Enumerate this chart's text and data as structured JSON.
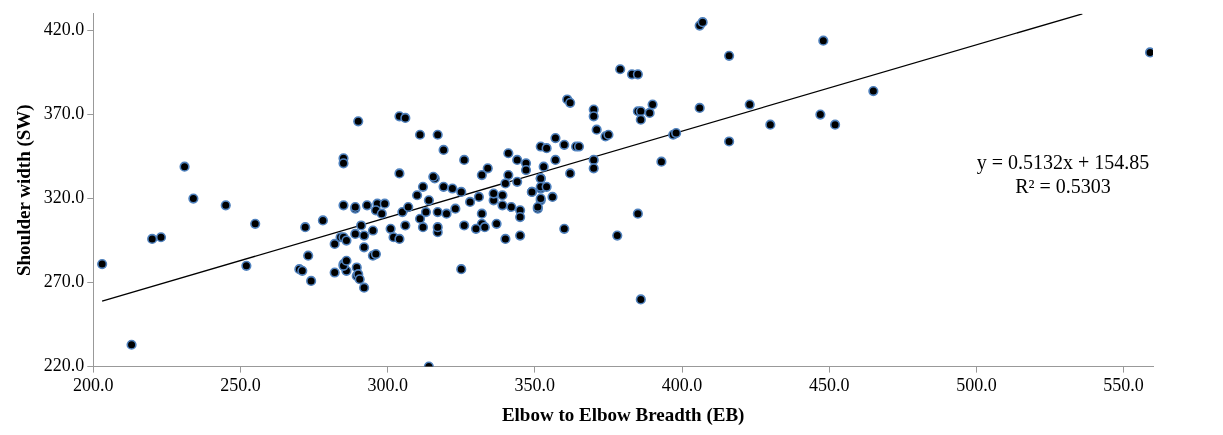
{
  "chart_data": {
    "type": "scatter",
    "xlabel": "Elbow to Elbow Breadth (EB)",
    "ylabel": "Shoulder width (SW)",
    "xlim": [
      200,
      560
    ],
    "xticks": [
      {
        "value": 200,
        "label": "200.0"
      },
      {
        "value": 250,
        "label": "250.0"
      },
      {
        "value": 300,
        "label": "300.0"
      },
      {
        "value": 350,
        "label": "350.0"
      },
      {
        "value": 400,
        "label": "400.0"
      },
      {
        "value": 450,
        "label": "450.0"
      },
      {
        "value": 500,
        "label": "500.0"
      },
      {
        "value": 550,
        "label": "550.0"
      }
    ],
    "ylim": [
      220,
      430
    ],
    "yticks": [
      {
        "value": 220,
        "label": "220.0"
      },
      {
        "value": 270,
        "label": "270.0"
      },
      {
        "value": 320,
        "label": "320.0"
      },
      {
        "value": 370,
        "label": "370.0"
      },
      {
        "value": 420,
        "label": "420.0"
      }
    ],
    "grid": false,
    "legend": false,
    "marker": "circle",
    "annotations": [
      "y = 0.5132x + 154.85",
      "R² = 0.5303"
    ],
    "series": [
      {
        "color": "#000000",
        "x": [
          203,
          213,
          220,
          223,
          231,
          234,
          245,
          255,
          252,
          272,
          278,
          273,
          270,
          271,
          274,
          282,
          282,
          285,
          285,
          285,
          284,
          285,
          286,
          290,
          289,
          285,
          286,
          285,
          286,
          289.5,
          289.5,
          289,
          304,
          306,
          311,
          317,
          319,
          304,
          326,
          341,
          344,
          347,
          334,
          332,
          352,
          354,
          353,
          347,
          341,
          312,
          316,
          315.5,
          319,
          322,
          325,
          310,
          314,
          289,
          293,
          296.5,
          299,
          296,
          298,
          305,
          307,
          311,
          313,
          317,
          320,
          323,
          328,
          331,
          336,
          339,
          342,
          339,
          345,
          345,
          349,
          351,
          352,
          352,
          352,
          332,
          332,
          337,
          326,
          330,
          333,
          340,
          345,
          325,
          317,
          317,
          312,
          306,
          301,
          302,
          304,
          295,
          291,
          292,
          292,
          295,
          296,
          290,
          290.5,
          292,
          340,
          336,
          344,
          406,
          407,
          448,
          416,
          379,
          383,
          385,
          361,
          362,
          370,
          370,
          385,
          386,
          386,
          390,
          389,
          406,
          423,
          447,
          452,
          430,
          397,
          398,
          371,
          374,
          375,
          416,
          357,
          360,
          364,
          365,
          370,
          370,
          357,
          393,
          362,
          352,
          352,
          354,
          349,
          352,
          356,
          351,
          360,
          385,
          378,
          386,
          465,
          559,
          314
        ],
        "values": [
          281,
          233,
          296,
          297,
          339,
          320,
          316,
          305,
          280,
          303,
          307,
          286,
          278,
          277,
          271,
          293,
          276,
          344,
          341,
          316,
          297,
          281,
          277,
          366,
          314,
          297,
          295,
          280,
          283,
          274,
          279,
          299,
          369,
          368,
          358,
          358,
          349,
          335,
          343,
          347,
          343,
          341,
          338,
          334,
          351,
          350,
          339,
          337,
          334,
          327,
          332,
          333,
          327,
          326,
          324,
          322,
          319,
          315,
          316,
          317,
          317,
          313,
          311,
          312,
          315,
          308,
          312,
          312,
          311,
          314,
          318,
          321,
          319,
          322,
          315,
          316,
          313,
          309,
          324,
          314,
          332,
          326,
          319,
          311,
          305,
          305,
          304,
          302,
          303,
          296,
          298,
          278,
          300,
          303,
          303,
          304,
          302,
          297,
          296,
          301,
          304,
          298,
          291,
          286,
          287,
          275,
          272,
          267,
          329,
          323,
          330,
          423,
          425,
          414,
          405,
          397,
          394,
          394,
          379,
          377,
          373,
          369,
          372,
          372,
          367,
          376,
          371,
          374,
          376,
          370,
          364,
          364,
          358,
          359,
          361,
          357,
          358,
          354,
          356,
          352,
          351,
          351,
          343,
          338,
          343,
          342,
          335,
          332,
          327,
          327,
          324,
          320,
          321,
          315,
          302,
          311,
          298,
          260,
          384,
          407,
          220
        ]
      },
      {
        "type": "line",
        "marker": "none",
        "color": "#000000",
        "x": [
          203,
          536
        ],
        "values": [
          259.0,
          430.0
        ]
      }
    ]
  }
}
